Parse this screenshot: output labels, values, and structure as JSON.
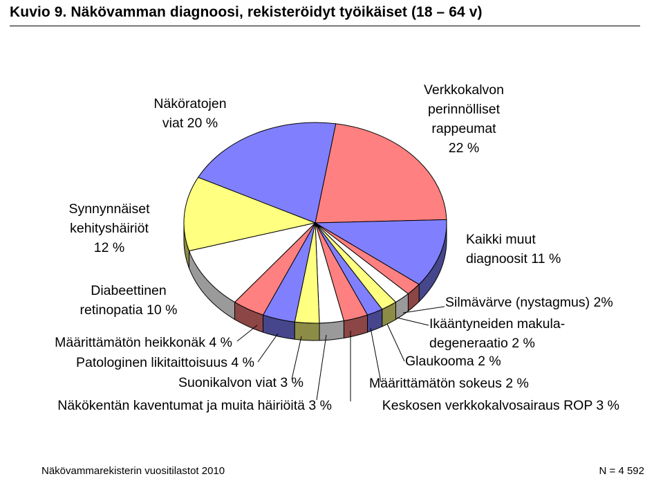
{
  "header": {
    "title": "Kuvio 9.  Näkövamman diagnoosi, rekisteröidyt työikäiset (18 – 64 v)"
  },
  "footer": {
    "source": "Näkövammarekisterin vuositilastot 2010",
    "n": "N = 4 592"
  },
  "chart_data": {
    "type": "pie",
    "style": "3d-exploded",
    "unit": "%",
    "slices": [
      {
        "label": "Verkkokalvon perinnölliset rappeumat",
        "label_lines": [
          "Verkkokalvon",
          "perinnölliset",
          "rappeumat",
          "22 %"
        ],
        "value": 22,
        "color": "#FF8080"
      },
      {
        "label": "Kaikki muut diagnoosit",
        "label_lines": [
          "Kaikki muut",
          "diagnoosit 11 %"
        ],
        "value": 11,
        "color": "#8080FF"
      },
      {
        "label": "Silmävärve (nystagmus)",
        "label_lines": [
          "Silmävärve (nystagmus) 2%"
        ],
        "value": 2,
        "color": "#FF8080"
      },
      {
        "label": "Ikääntyneiden makuladegeneraatio",
        "label_lines": [
          "Ikääntyneiden makula-",
          "degeneraatio 2 %"
        ],
        "value": 2,
        "color": "#FFFFFF"
      },
      {
        "label": "Glaukooma",
        "label_lines": [
          "Glaukooma 2 %"
        ],
        "value": 2,
        "color": "#FFFF80"
      },
      {
        "label": "Määrittämätön sokeus",
        "label_lines": [
          "Määrittämätön sokeus 2 %"
        ],
        "value": 2,
        "color": "#8080FF"
      },
      {
        "label": "Keskosen verkkokalvosairaus ROP",
        "label_lines": [
          "Keskosen verkkokalvosairaus ROP 3 %"
        ],
        "value": 3,
        "color": "#FF8080"
      },
      {
        "label": "Näkökentän kaventumat ja muita häiriöitä",
        "label_lines": [
          "Näkökentän kaventumat ja muita häiriöitä 3 %"
        ],
        "value": 3,
        "color": "#FFFFFF"
      },
      {
        "label": "Suonikalvon viat",
        "label_lines": [
          "Suonikalvon viat 3 %"
        ],
        "value": 3,
        "color": "#FFFF80"
      },
      {
        "label": "Patologinen likitaittoisuus",
        "label_lines": [
          "Patologinen likitaittoisuus 4 %"
        ],
        "value": 4,
        "color": "#8080FF"
      },
      {
        "label": "Määrittämätön heikkonäk",
        "label_lines": [
          "Määrittämätön heikkonäk 4 %"
        ],
        "value": 4,
        "color": "#FF8080"
      },
      {
        "label": "Diabeettinen retinopatia",
        "label_lines": [
          "Diabeettinen",
          "retinopatia 10 %"
        ],
        "value": 10,
        "color": "#FFFFFF"
      },
      {
        "label": "Synnynnäiset kehityshäiriöt",
        "label_lines": [
          "Synnynnäiset",
          "kehityshäiriöt",
          "12 %"
        ],
        "value": 12,
        "color": "#FFFF80"
      },
      {
        "label": "Näköratojen viat",
        "label_lines": [
          "Näköratojen",
          "viat  20 %"
        ],
        "value": 20,
        "color": "#8080FF"
      }
    ]
  }
}
